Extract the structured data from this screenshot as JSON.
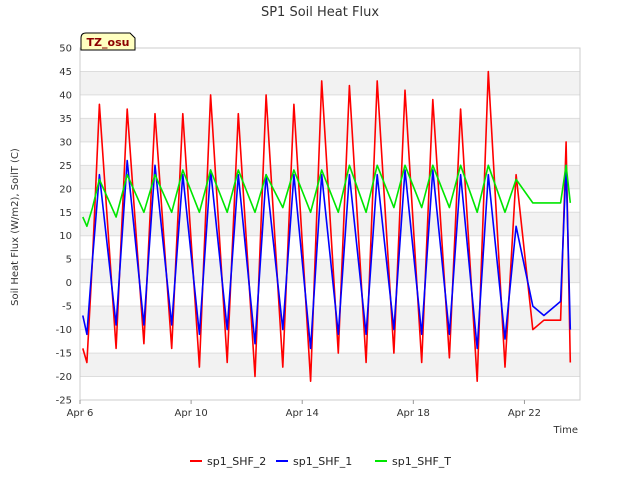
{
  "chart_data": {
    "type": "line",
    "title": "SP1 Soil Heat Flux",
    "xlabel": "Time",
    "ylabel": "Soil Heat Flux (W/m2), SoilT (C)",
    "badge": "TZ_osu",
    "ylim": [
      -25,
      50
    ],
    "yticks": [
      -25,
      -20,
      -15,
      -10,
      -5,
      0,
      5,
      10,
      15,
      20,
      25,
      30,
      35,
      40,
      45,
      50
    ],
    "xlim": [
      6,
      24
    ],
    "xticks": [
      {
        "label": "Apr 6",
        "value": 6
      },
      {
        "label": "Apr 10",
        "value": 10
      },
      {
        "label": "Apr 14",
        "value": 14
      },
      {
        "label": "Apr 18",
        "value": 18
      },
      {
        "label": "Apr 22",
        "value": 22
      }
    ],
    "grid": "horizontal bands",
    "legend_position": "bottom",
    "x_days": [
      6.1,
      6.25,
      6.45,
      6.7,
      7.3,
      7.7,
      8.3,
      8.7,
      9.3,
      9.7,
      10.3,
      10.7,
      11.3,
      11.7,
      12.3,
      12.7,
      13.3,
      13.7,
      14.3,
      14.7,
      15.3,
      15.7,
      16.3,
      16.7,
      17.3,
      17.7,
      18.3,
      18.7,
      19.3,
      19.7,
      20.3,
      20.7,
      21.3,
      21.7,
      22.3,
      22.7,
      23.3,
      23.5,
      23.65
    ],
    "series": [
      {
        "name": "sp1_SHF_2",
        "color": "#ff0000",
        "values": [
          -14,
          -17,
          5,
          38,
          -14,
          37,
          -13,
          36,
          -14,
          36,
          -18,
          40,
          -17,
          36,
          -20,
          40,
          -18,
          38,
          -21,
          43,
          -15,
          42,
          -17,
          43,
          -15,
          41,
          -17,
          39,
          -16,
          37,
          -21,
          45,
          -18,
          23,
          -10,
          -8,
          -8,
          30,
          -17
        ]
      },
      {
        "name": "sp1_SHF_1",
        "color": "#0000ff",
        "values": [
          -7,
          -11,
          5,
          23,
          -9,
          26,
          -9,
          25,
          -9,
          23,
          -11,
          24,
          -10,
          23,
          -13,
          23,
          -10,
          23,
          -14,
          23,
          -11,
          23,
          -11,
          23,
          -10,
          24,
          -11,
          24,
          -11,
          23,
          -14,
          23,
          -12,
          12,
          -5,
          -7,
          -4,
          25,
          -10
        ]
      },
      {
        "name": "sp1_SHF_T",
        "color": "#00e600",
        "values": [
          14,
          12,
          16,
          22,
          14,
          23,
          15,
          23,
          15,
          24,
          15,
          24,
          15,
          24,
          15,
          23,
          16,
          24,
          15,
          24,
          15,
          25,
          15,
          25,
          16,
          25,
          16,
          25,
          16,
          25,
          15,
          25,
          15,
          22,
          17,
          17,
          17,
          25,
          17
        ]
      }
    ]
  }
}
